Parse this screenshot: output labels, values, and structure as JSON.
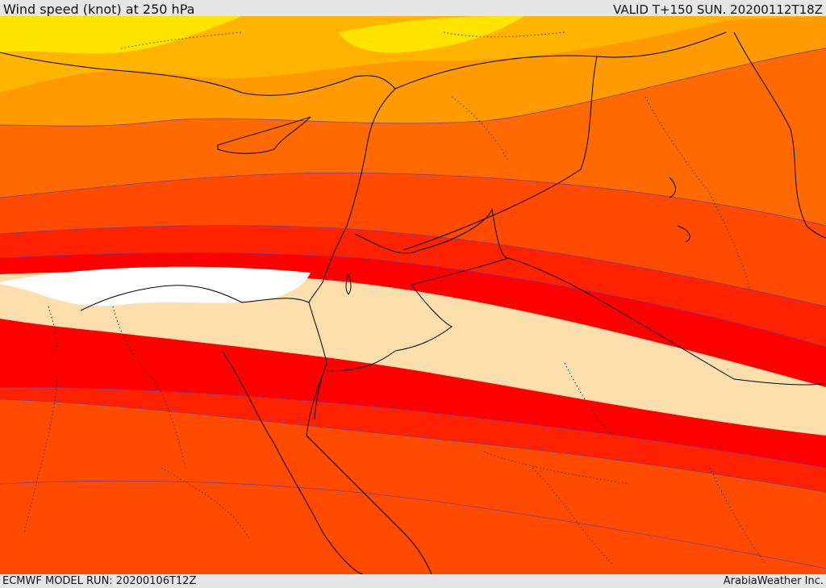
{
  "header": {
    "title": "Wind speed (knot) at 250 hPa",
    "valid": "VALID T+150 SUN. 20200112T18Z"
  },
  "footer": {
    "model_run": "ECMWF MODEL RUN: 20200106T12Z",
    "credit": "ArabiaWeather Inc."
  },
  "colors": {
    "band_1": "#ffe400",
    "band_2": "#ffb400",
    "band_3": "#ff9a00",
    "band_4": "#ff6a00",
    "band_5": "#ff4a00",
    "band_6": "#ff2200",
    "band_7": "#ff0000",
    "core_light": "#fddfae",
    "core_max": "#ffffff",
    "borders": "#000000"
  }
}
